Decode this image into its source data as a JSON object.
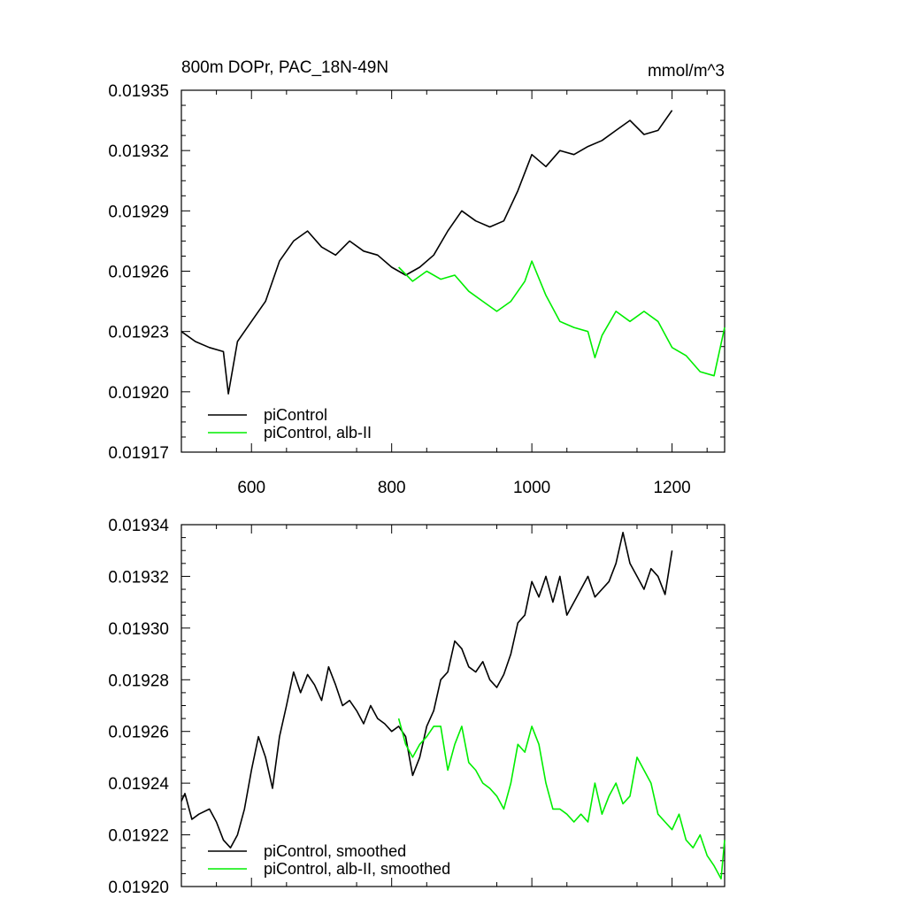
{
  "chart_data": [
    {
      "type": "line",
      "title": "800m DOPr, PAC_18N-49N",
      "units": "mmol/m^3",
      "xlim": [
        500,
        1275
      ],
      "ylim": [
        0.1917,
        0.1935
      ],
      "x_ticks": [
        600,
        800,
        1000,
        1200
      ],
      "y_ticks": [
        0.1917,
        0.192,
        0.1923,
        0.1926,
        0.1929,
        0.1932,
        0.1935
      ],
      "y_tick_labels": [
        "0.01917",
        "0.01920",
        "0.01923",
        "0.01926",
        "0.01929",
        "0.01932",
        "0.01935"
      ],
      "x_tick_labels": [
        "600",
        "800",
        "1000",
        "1200"
      ],
      "legend": {
        "position": "bottom-left",
        "items": [
          "piControl",
          "piControl, alb-II"
        ]
      },
      "series": [
        {
          "name": "piControl",
          "color": "#000000",
          "x": [
            500,
            520,
            540,
            560,
            567,
            580,
            600,
            620,
            640,
            660,
            680,
            700,
            720,
            740,
            760,
            780,
            800,
            820,
            840,
            860,
            880,
            900,
            920,
            940,
            960,
            980,
            1000,
            1020,
            1040,
            1060,
            1080,
            1100,
            1120,
            1140,
            1160,
            1180,
            1200
          ],
          "y": [
            0.1923,
            0.19225,
            0.19222,
            0.1922,
            0.19199,
            0.19225,
            0.19235,
            0.19245,
            0.19265,
            0.19275,
            0.1928,
            0.19272,
            0.19268,
            0.19275,
            0.1927,
            0.19268,
            0.19262,
            0.19258,
            0.19262,
            0.19268,
            0.1928,
            0.1929,
            0.19285,
            0.19282,
            0.19285,
            0.193,
            0.19318,
            0.19312,
            0.1932,
            0.19318,
            0.19322,
            0.19325,
            0.1933,
            0.19335,
            0.19328,
            0.1933,
            0.1934
          ]
        },
        {
          "name": "piControl, alb-II",
          "color": "#00ee00",
          "x": [
            810,
            830,
            850,
            870,
            890,
            910,
            930,
            950,
            970,
            990,
            1000,
            1020,
            1040,
            1060,
            1080,
            1090,
            1100,
            1120,
            1140,
            1160,
            1180,
            1200,
            1220,
            1240,
            1260,
            1275
          ],
          "y": [
            0.19262,
            0.19255,
            0.1926,
            0.19256,
            0.19258,
            0.1925,
            0.19245,
            0.1924,
            0.19245,
            0.19255,
            0.19265,
            0.19248,
            0.19235,
            0.19232,
            0.1923,
            0.19217,
            0.19228,
            0.1924,
            0.19235,
            0.1924,
            0.19235,
            0.19222,
            0.19218,
            0.1921,
            0.19208,
            0.19232
          ]
        }
      ]
    },
    {
      "type": "line",
      "xlim": [
        500,
        1275
      ],
      "ylim": [
        0.192,
        0.1934
      ],
      "x_ticks": [
        600,
        800,
        1000,
        1200
      ],
      "y_ticks": [
        0.192,
        0.1922,
        0.1924,
        0.1926,
        0.1928,
        0.193,
        0.1932,
        0.1934
      ],
      "y_tick_labels": [
        "0.01920",
        "0.01922",
        "0.01924",
        "0.01926",
        "0.01928",
        "0.01930",
        "0.01932",
        "0.01934"
      ],
      "legend": {
        "position": "bottom-left",
        "items": [
          "piControl, smoothed",
          "piControl, alb-II, smoothed"
        ]
      },
      "series": [
        {
          "name": "piControl, smoothed",
          "color": "#000000",
          "x": [
            500,
            505,
            515,
            525,
            540,
            550,
            560,
            570,
            580,
            590,
            600,
            610,
            620,
            630,
            640,
            650,
            660,
            670,
            680,
            690,
            700,
            710,
            720,
            730,
            740,
            750,
            760,
            770,
            780,
            790,
            800,
            810,
            820,
            830,
            840,
            850,
            860,
            870,
            880,
            890,
            900,
            910,
            920,
            930,
            940,
            950,
            960,
            970,
            980,
            990,
            1000,
            1010,
            1020,
            1030,
            1040,
            1050,
            1060,
            1070,
            1080,
            1090,
            1100,
            1110,
            1120,
            1130,
            1140,
            1150,
            1160,
            1170,
            1180,
            1190,
            1200
          ],
          "y": [
            0.19233,
            0.19236,
            0.19226,
            0.19228,
            0.1923,
            0.19225,
            0.19218,
            0.19215,
            0.1922,
            0.1923,
            0.19245,
            0.19258,
            0.1925,
            0.19238,
            0.19258,
            0.1927,
            0.19283,
            0.19275,
            0.19282,
            0.19278,
            0.19272,
            0.19285,
            0.19278,
            0.1927,
            0.19272,
            0.19268,
            0.19263,
            0.1927,
            0.19265,
            0.19263,
            0.1926,
            0.19262,
            0.19258,
            0.19243,
            0.1925,
            0.19262,
            0.19268,
            0.1928,
            0.19283,
            0.19295,
            0.19292,
            0.19285,
            0.19283,
            0.19287,
            0.1928,
            0.19277,
            0.19282,
            0.1929,
            0.19302,
            0.19305,
            0.19318,
            0.19312,
            0.1932,
            0.1931,
            0.1932,
            0.19305,
            0.1931,
            0.19315,
            0.1932,
            0.19312,
            0.19315,
            0.19318,
            0.19325,
            0.19337,
            0.19325,
            0.1932,
            0.19315,
            0.19323,
            0.1932,
            0.19313,
            0.1933
          ]
        },
        {
          "name": "piControl, alb-II, smoothed",
          "color": "#00ee00",
          "x": [
            810,
            820,
            830,
            840,
            850,
            860,
            870,
            880,
            890,
            900,
            910,
            920,
            930,
            940,
            950,
            960,
            970,
            980,
            990,
            1000,
            1010,
            1020,
            1030,
            1040,
            1050,
            1060,
            1070,
            1080,
            1090,
            1100,
            1110,
            1120,
            1130,
            1140,
            1150,
            1160,
            1170,
            1180,
            1190,
            1200,
            1210,
            1220,
            1230,
            1240,
            1250,
            1260,
            1270,
            1275
          ],
          "y": [
            0.19265,
            0.19255,
            0.1925,
            0.19255,
            0.19258,
            0.19262,
            0.19262,
            0.19245,
            0.19255,
            0.19262,
            0.19248,
            0.19245,
            0.1924,
            0.19238,
            0.19235,
            0.1923,
            0.1924,
            0.19255,
            0.19252,
            0.19262,
            0.19255,
            0.1924,
            0.1923,
            0.1923,
            0.19228,
            0.19225,
            0.19228,
            0.19225,
            0.1924,
            0.19228,
            0.19235,
            0.1924,
            0.19232,
            0.19235,
            0.1925,
            0.19245,
            0.1924,
            0.19228,
            0.19225,
            0.19222,
            0.19228,
            0.19218,
            0.19215,
            0.1922,
            0.19212,
            0.19208,
            0.19203,
            0.19218
          ]
        }
      ]
    }
  ]
}
